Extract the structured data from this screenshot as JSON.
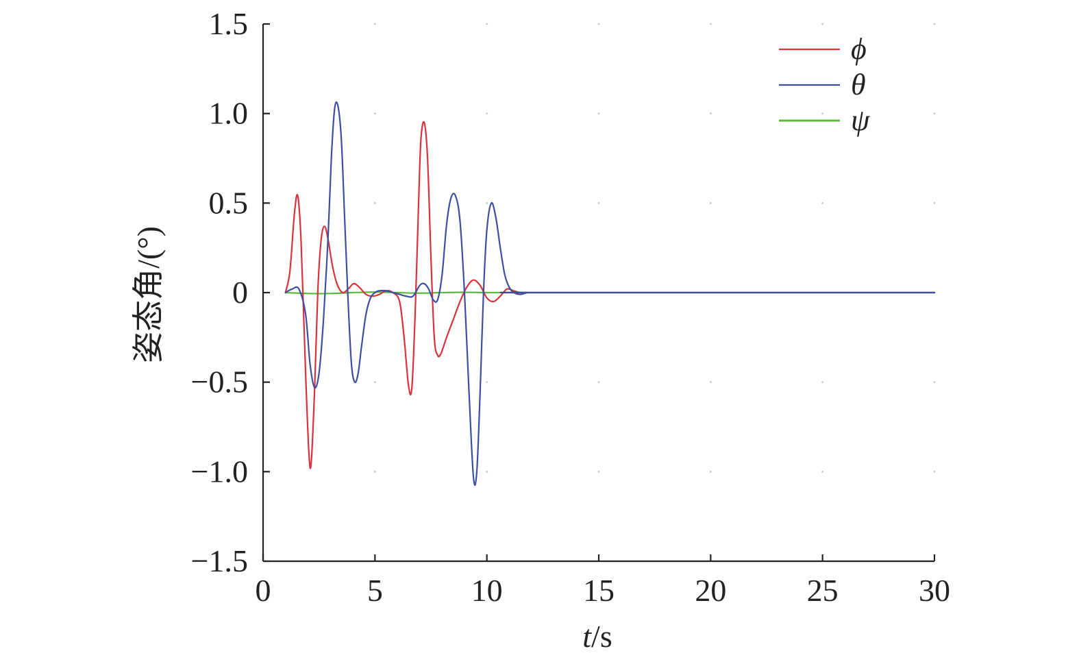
{
  "chart_data": {
    "type": "line",
    "title": "",
    "xlabel_var": "t",
    "xlabel_unit": "/s",
    "ylabel": "姿态角/(°)",
    "xlim": [
      0,
      30
    ],
    "ylim": [
      -1.5,
      1.5
    ],
    "xticks": [
      0,
      5,
      10,
      15,
      20,
      25,
      30
    ],
    "yticks": [
      -1.5,
      -1.0,
      -0.5,
      0,
      0.5,
      1.0,
      1.5
    ],
    "xtick_labels": [
      "0",
      "5",
      "10",
      "15",
      "20",
      "25",
      "30"
    ],
    "ytick_labels": [
      "−1.5",
      "−1.0",
      "−0.5",
      "0",
      "0.5",
      "1.0",
      "1.5"
    ],
    "grid": "dotted",
    "legend": "top-right",
    "series": [
      {
        "name": "ϕ",
        "color": "#d9323c",
        "x": [
          1.0,
          1.2,
          1.4,
          1.55,
          1.7,
          1.9,
          2.05,
          2.15,
          2.3,
          2.45,
          2.6,
          2.75,
          2.9,
          3.1,
          3.3,
          3.55,
          3.8,
          4.05,
          4.3,
          4.6,
          4.9,
          5.2,
          5.5,
          5.8,
          6.1,
          6.3,
          6.5,
          6.65,
          6.8,
          6.95,
          7.05,
          7.2,
          7.35,
          7.5,
          7.65,
          7.8,
          7.95,
          8.2,
          8.5,
          8.8,
          9.1,
          9.4,
          9.7,
          10.0,
          10.3,
          10.6,
          10.9,
          11.2,
          11.5,
          11.8,
          12.0,
          30.0
        ],
        "y": [
          0,
          0.12,
          0.44,
          0.54,
          0.28,
          -0.45,
          -0.9,
          -0.95,
          -0.55,
          0.02,
          0.3,
          0.37,
          0.3,
          0.15,
          0.05,
          0.0,
          0.02,
          0.05,
          0.03,
          -0.01,
          -0.02,
          -0.01,
          0.01,
          0.0,
          -0.05,
          -0.25,
          -0.52,
          -0.53,
          -0.1,
          0.5,
          0.85,
          0.95,
          0.75,
          0.2,
          -0.25,
          -0.35,
          -0.34,
          -0.25,
          -0.15,
          -0.05,
          0.03,
          0.07,
          0.04,
          -0.03,
          -0.05,
          -0.02,
          0.02,
          0.01,
          0.0,
          0.0,
          0.0,
          0.0
        ]
      },
      {
        "name": "θ",
        "color": "#3a4fa2",
        "x": [
          1.0,
          1.3,
          1.6,
          1.9,
          2.1,
          2.3,
          2.5,
          2.7,
          2.9,
          3.05,
          3.2,
          3.35,
          3.5,
          3.65,
          3.8,
          3.95,
          4.1,
          4.25,
          4.4,
          4.6,
          4.8,
          5.0,
          5.2,
          5.5,
          5.8,
          6.1,
          6.4,
          6.7,
          7.0,
          7.2,
          7.4,
          7.6,
          7.8,
          8.0,
          8.2,
          8.4,
          8.6,
          8.8,
          9.0,
          9.2,
          9.4,
          9.55,
          9.7,
          9.85,
          10.0,
          10.2,
          10.4,
          10.6,
          10.8,
          11.0,
          11.2,
          11.5,
          11.8,
          12.0,
          30.0
        ],
        "y": [
          0,
          0.02,
          0.02,
          -0.12,
          -0.4,
          -0.53,
          -0.45,
          -0.15,
          0.3,
          0.75,
          1.03,
          1.04,
          0.85,
          0.4,
          -0.05,
          -0.4,
          -0.5,
          -0.45,
          -0.3,
          -0.12,
          -0.03,
          0.0,
          0.01,
          0.01,
          0.0,
          -0.01,
          -0.02,
          -0.02,
          0.04,
          0.05,
          0.02,
          -0.04,
          -0.04,
          0.1,
          0.38,
          0.53,
          0.54,
          0.4,
          0.0,
          -0.55,
          -1.03,
          -1.0,
          -0.55,
          0.0,
          0.35,
          0.5,
          0.42,
          0.25,
          0.1,
          0.03,
          0.0,
          -0.01,
          0.0,
          0.0,
          0.0
        ]
      },
      {
        "name": "ψ",
        "color": "#5cb83d",
        "x": [
          1.0,
          2.0,
          3.0,
          4.0,
          5.0,
          6.0,
          7.0,
          8.0,
          9.0,
          10.0,
          11.0,
          12.0,
          30.0
        ],
        "y": [
          0,
          -0.005,
          -0.005,
          0.0,
          0.003,
          0.0,
          -0.003,
          0.0,
          0.002,
          0.0,
          0.0,
          0.0,
          0.0
        ]
      }
    ]
  }
}
